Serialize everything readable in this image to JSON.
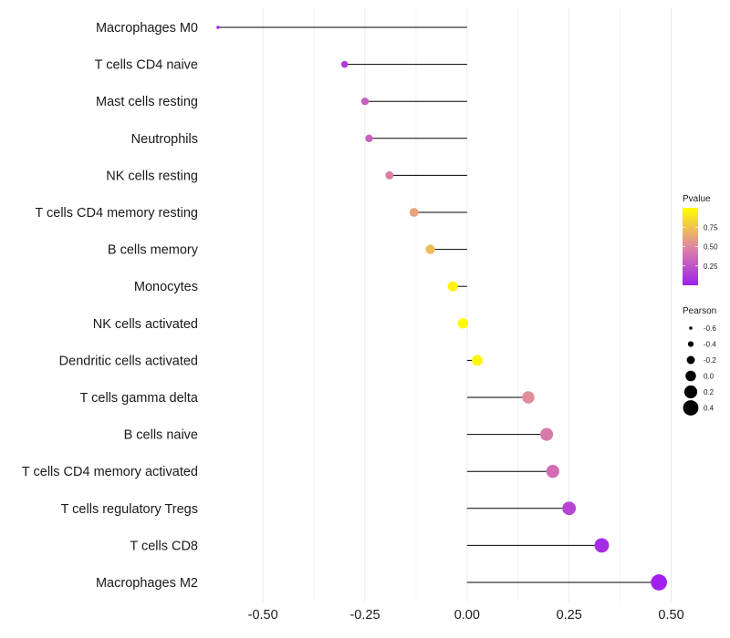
{
  "chart_data": {
    "type": "lollipop",
    "title": "",
    "xlabel": "",
    "ylabel": "",
    "xlim": [
      -0.63,
      0.51
    ],
    "x_ticks": [
      -0.5,
      -0.25,
      0,
      0.25,
      0.5
    ],
    "x_tick_labels": [
      "-0.50",
      "-0.25",
      "0.00",
      "0.25",
      "0.50"
    ],
    "baseline": 0,
    "categories": [
      "Macrophages M0",
      "T cells CD4 naive",
      "Mast cells resting",
      "Neutrophils",
      "NK cells resting",
      "T cells CD4 memory resting",
      "B cells memory",
      "Monocytes",
      "NK cells activated",
      "Dendritic cells activated",
      "T cells gamma delta",
      "B cells naive",
      "T cells CD4 memory activated",
      "T cells regulatory  Tregs ",
      "T cells CD8",
      "Macrophages M2"
    ],
    "pearson": [
      -0.61,
      -0.3,
      -0.25,
      -0.24,
      -0.19,
      -0.13,
      -0.09,
      -0.035,
      -0.01,
      0.025,
      0.15,
      0.195,
      0.21,
      0.25,
      0.33,
      0.47
    ],
    "pvalue": [
      0.0,
      0.12,
      0.3,
      0.32,
      0.45,
      0.62,
      0.72,
      0.95,
      0.98,
      0.96,
      0.52,
      0.44,
      0.38,
      0.18,
      0.06,
      0.0
    ],
    "color_legend": {
      "title": "Pvalue",
      "ticks": [
        0.25,
        0.5,
        0.75
      ],
      "tick_labels": [
        "0.25",
        "0.50",
        "0.75"
      ],
      "range": [
        0,
        1
      ],
      "low_color": "#a020f0",
      "mid_color": "#e087a0",
      "high_color": "#ffff00"
    },
    "size_legend": {
      "title": "Pearson",
      "values": [
        -0.6,
        -0.4,
        -0.2,
        0.0,
        0.2,
        0.4
      ],
      "labels": [
        "-0.6",
        "-0.4",
        "-0.2",
        "0.0",
        "0.2",
        "0.4"
      ]
    },
    "colors": {
      "stem": "#000000",
      "grid": "#ebebeb",
      "background": "#ffffff"
    }
  }
}
